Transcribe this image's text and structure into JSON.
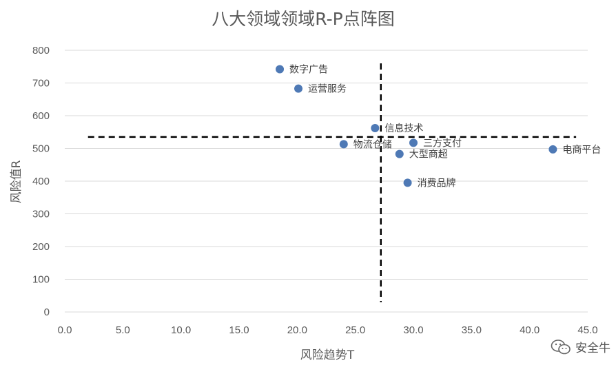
{
  "chart_data": {
    "type": "scatter",
    "title": "八大领域领域R-P点阵图",
    "xlabel": "风险趋势T",
    "ylabel": "风险值R",
    "xlim": [
      0,
      45
    ],
    "ylim": [
      0,
      800
    ],
    "xticks": [
      "0.0",
      "5.0",
      "10.0",
      "15.0",
      "20.0",
      "25.0",
      "30.0",
      "35.0",
      "40.0",
      "45.0"
    ],
    "yticks": [
      "0",
      "100",
      "200",
      "300",
      "400",
      "500",
      "600",
      "700",
      "800"
    ],
    "grid": true,
    "marker_color": "#4E79B5",
    "points": [
      {
        "label": "数字广告",
        "x": 18.5,
        "y": 742
      },
      {
        "label": "运营服务",
        "x": 20.1,
        "y": 683
      },
      {
        "label": "信息技术",
        "x": 26.7,
        "y": 562
      },
      {
        "label": "物流仓储",
        "x": 24.0,
        "y": 513
      },
      {
        "label": "三方支付",
        "x": 30.0,
        "y": 517
      },
      {
        "label": "大型商超",
        "x": 28.8,
        "y": 483
      },
      {
        "label": "消费品牌",
        "x": 29.5,
        "y": 395
      },
      {
        "label": "电商平台",
        "x": 42.0,
        "y": 497
      }
    ],
    "reference_lines": {
      "horizontal_y": 535,
      "horizontal_x_range": [
        2.0,
        44.0
      ],
      "vertical_x": 27.2,
      "vertical_y_range": [
        30,
        760
      ]
    }
  },
  "watermark": {
    "text": "安全牛",
    "icon": "wechat-icon"
  }
}
